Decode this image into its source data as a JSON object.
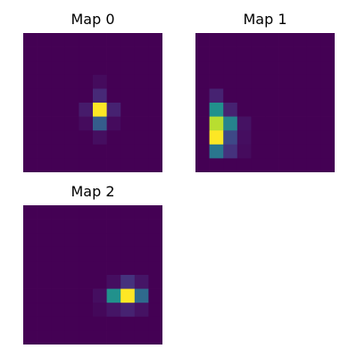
{
  "colors": {
    "background": "#ffffff",
    "colormap": "viridis",
    "low": "#440154",
    "high": "#fde725"
  },
  "chart_data": [
    {
      "type": "heatmap",
      "title": "Map 0",
      "rows": 10,
      "cols": 10,
      "values": [
        [
          0,
          0,
          0,
          0,
          0,
          0,
          0,
          0,
          0,
          0
        ],
        [
          0,
          0,
          0,
          0,
          0,
          0,
          0,
          0,
          0,
          0
        ],
        [
          0,
          0,
          0,
          0,
          0,
          0,
          0,
          0,
          0,
          0
        ],
        [
          0,
          0,
          0,
          0,
          0,
          0.03,
          0,
          0,
          0,
          0
        ],
        [
          0,
          0,
          0,
          0,
          0,
          0.12,
          0,
          0,
          0,
          0
        ],
        [
          0,
          0,
          0,
          0,
          0.08,
          1,
          0.1,
          0,
          0,
          0
        ],
        [
          0,
          0,
          0,
          0,
          0.03,
          0.3,
          0.03,
          0,
          0,
          0
        ],
        [
          0,
          0,
          0,
          0,
          0,
          0.04,
          0,
          0,
          0,
          0
        ],
        [
          0,
          0,
          0,
          0,
          0,
          0,
          0,
          0,
          0,
          0
        ],
        [
          0,
          0,
          0,
          0,
          0,
          0,
          0,
          0,
          0,
          0
        ]
      ],
      "grid": false
    },
    {
      "type": "heatmap",
      "title": "Map 1",
      "rows": 10,
      "cols": 10,
      "values": [
        [
          0,
          0,
          0,
          0,
          0,
          0,
          0,
          0,
          0,
          0
        ],
        [
          0,
          0,
          0,
          0,
          0,
          0,
          0,
          0,
          0,
          0
        ],
        [
          0,
          0,
          0,
          0,
          0,
          0,
          0,
          0,
          0,
          0
        ],
        [
          0,
          0,
          0,
          0,
          0,
          0,
          0,
          0,
          0,
          0
        ],
        [
          0,
          0.1,
          0,
          0,
          0,
          0,
          0,
          0,
          0,
          0
        ],
        [
          0,
          0.5,
          0.1,
          0,
          0,
          0,
          0,
          0,
          0,
          0
        ],
        [
          0,
          0.9,
          0.45,
          0.05,
          0,
          0,
          0,
          0,
          0,
          0
        ],
        [
          0,
          1,
          0.22,
          0.04,
          0,
          0,
          0,
          0,
          0,
          0
        ],
        [
          0,
          0.4,
          0.15,
          0.03,
          0,
          0,
          0,
          0,
          0,
          0
        ],
        [
          0,
          0,
          0,
          0,
          0,
          0,
          0,
          0,
          0,
          0
        ]
      ],
      "grid": false
    },
    {
      "type": "heatmap",
      "title": "Map 2",
      "rows": 10,
      "cols": 10,
      "values": [
        [
          0,
          0,
          0,
          0,
          0,
          0,
          0,
          0,
          0,
          0
        ],
        [
          0,
          0,
          0,
          0,
          0,
          0,
          0,
          0,
          0,
          0
        ],
        [
          0,
          0,
          0,
          0,
          0,
          0,
          0,
          0,
          0,
          0
        ],
        [
          0,
          0,
          0,
          0,
          0,
          0,
          0,
          0,
          0,
          0
        ],
        [
          0,
          0,
          0,
          0,
          0,
          0,
          0,
          0,
          0,
          0
        ],
        [
          0,
          0,
          0,
          0,
          0,
          0,
          0.04,
          0.15,
          0.06,
          0
        ],
        [
          0,
          0,
          0,
          0,
          0,
          0.04,
          0.5,
          1,
          0.35,
          0
        ],
        [
          0,
          0,
          0,
          0,
          0,
          0.02,
          0.06,
          0.1,
          0.05,
          0
        ],
        [
          0,
          0,
          0,
          0,
          0,
          0,
          0,
          0,
          0,
          0
        ],
        [
          0,
          0,
          0,
          0,
          0,
          0,
          0,
          0,
          0,
          0
        ]
      ],
      "grid": false
    }
  ]
}
